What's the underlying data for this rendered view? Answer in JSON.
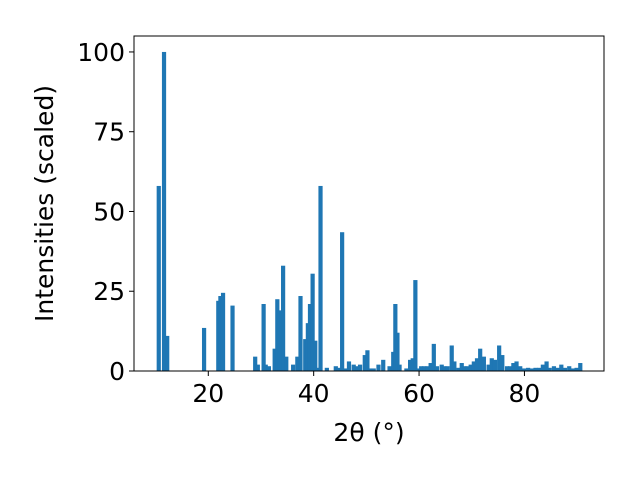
{
  "chart_data": {
    "type": "bar",
    "title": "",
    "xlabel": "2θ (°)",
    "ylabel": "Intensities (scaled)",
    "xlim": [
      5.9,
      95.1
    ],
    "ylim": [
      0,
      105
    ],
    "x_ticks": [
      "20",
      "40",
      "60",
      "80"
    ],
    "y_ticks": [
      "0",
      "25",
      "50",
      "75",
      "100"
    ],
    "grid": false,
    "legend": "none",
    "bar_color": "#1f77b4",
    "x": [
      10.6,
      11.6,
      12.2,
      19.2,
      21.9,
      22.3,
      22.8,
      24.6,
      28.9,
      29.4,
      30.5,
      30.9,
      31.5,
      32.6,
      33.1,
      33.6,
      34.2,
      34.8,
      36.1,
      36.9,
      37.5,
      38.4,
      38.9,
      39.3,
      39.8,
      40.3,
      40.7,
      41.3,
      42.5,
      44.2,
      44.8,
      45.4,
      46.0,
      46.7,
      47.6,
      48.3,
      48.8,
      49.7,
      50.2,
      50.7,
      51.4,
      52.3,
      53.2,
      54.4,
      55.1,
      55.5,
      55.9,
      56.3,
      57.6,
      58.3,
      58.8,
      59.3,
      59.8,
      60.4,
      61.0,
      61.6,
      62.2,
      62.8,
      63.4,
      64.3,
      64.8,
      65.4,
      66.2,
      66.7,
      67.5,
      68.1,
      68.6,
      69.2,
      69.8,
      70.4,
      71.0,
      71.6,
      72.3,
      73.2,
      73.8,
      74.4,
      75.2,
      75.8,
      76.7,
      77.3,
      77.9,
      78.5,
      79.2,
      79.9,
      80.7,
      81.4,
      82.1,
      82.8,
      83.5,
      84.2,
      84.8,
      85.6,
      86.3,
      87.0,
      87.7,
      88.5,
      89.2,
      89.9,
      90.6
    ],
    "values": [
      58,
      100,
      11,
      13.5,
      22,
      23.5,
      24.5,
      20.5,
      4.5,
      2,
      21,
      2,
      1.5,
      7,
      22.5,
      19,
      33,
      4.5,
      2,
      4.5,
      23.5,
      10,
      15,
      21,
      30.5,
      9.5,
      1,
      58,
      1,
      1.5,
      1,
      43.5,
      0.8,
      3,
      2,
      1.5,
      2,
      5,
      6.5,
      0.8,
      0.8,
      2,
      3.5,
      1.5,
      6,
      21,
      12,
      2,
      0.8,
      3.5,
      4,
      28.5,
      0.8,
      1.5,
      1.5,
      1.5,
      2.5,
      8.5,
      1.5,
      2,
      1.5,
      1.5,
      8,
      3,
      1,
      2.5,
      1.5,
      1.5,
      2,
      3,
      4,
      7,
      4.5,
      2,
      4,
      3.5,
      8,
      5,
      1.5,
      1.5,
      2.5,
      3,
      1.5,
      0.8,
      1,
      0.8,
      1,
      1,
      2,
      3,
      1,
      1.5,
      1,
      2,
      1,
      1.5,
      0.8,
      1,
      2.5
    ]
  }
}
